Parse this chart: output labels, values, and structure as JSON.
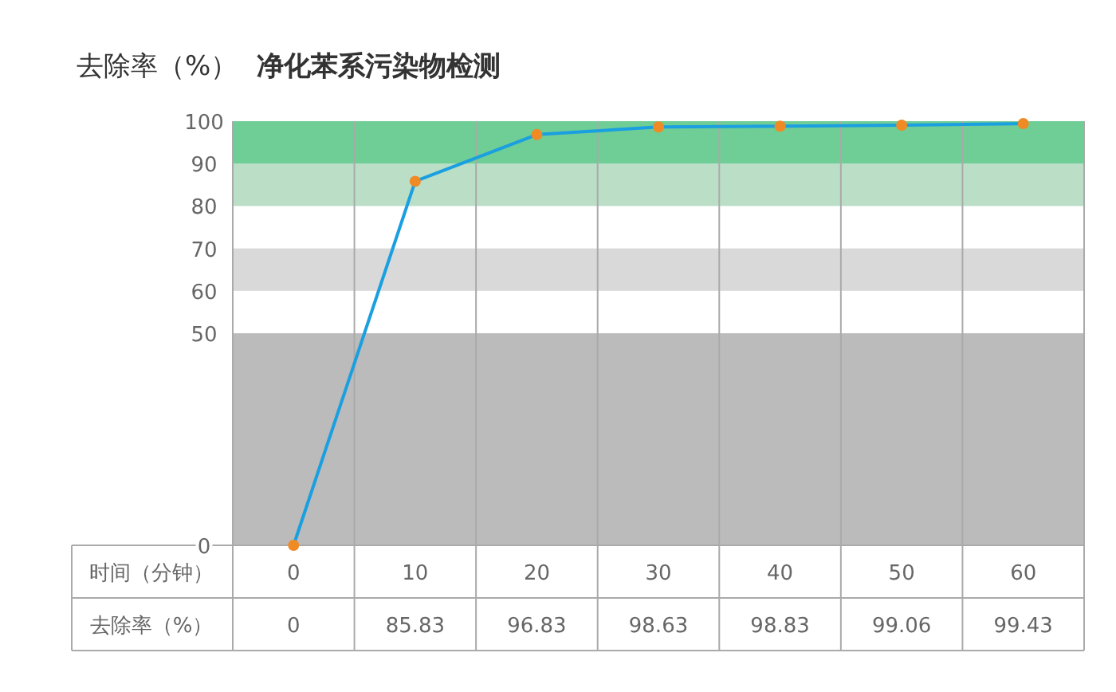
{
  "chart_data": {
    "type": "line",
    "title": "净化苯系污染物检测",
    "ylabel": "去除率（%）",
    "xlabel": "时间（分钟）",
    "annotations": [
      "去除率（%）"
    ],
    "categories": [
      "0",
      "10",
      "20",
      "30",
      "40",
      "50",
      "60"
    ],
    "series": [
      {
        "color": "#1a9fe0",
        "colors": [
          "#f08a24",
          "#f08a24",
          "#f08a24",
          "#f08a24",
          "#f08a24",
          "#f08a24",
          "#f08a24"
        ],
        "values": [
          0,
          85.83,
          96.83,
          98.63,
          98.83,
          99.06,
          99.43
        ]
      }
    ],
    "marker": "circle",
    "ylim": [
      0,
      100
    ],
    "yticks": [
      0,
      50,
      60,
      70,
      80,
      90,
      100
    ],
    "bands": [
      {
        "axis": "y",
        "from": 0,
        "to": 50,
        "color": "#bbbbbb"
      },
      {
        "axis": "y",
        "from": 60,
        "to": 70,
        "color": "#d9d9d9"
      },
      {
        "axis": "y",
        "from": 80,
        "to": 90,
        "color": "#bbdec7"
      },
      {
        "axis": "y",
        "from": 90,
        "to": 100,
        "color": "#6fcd96"
      }
    ],
    "grid": "x",
    "data_labels": true
  }
}
